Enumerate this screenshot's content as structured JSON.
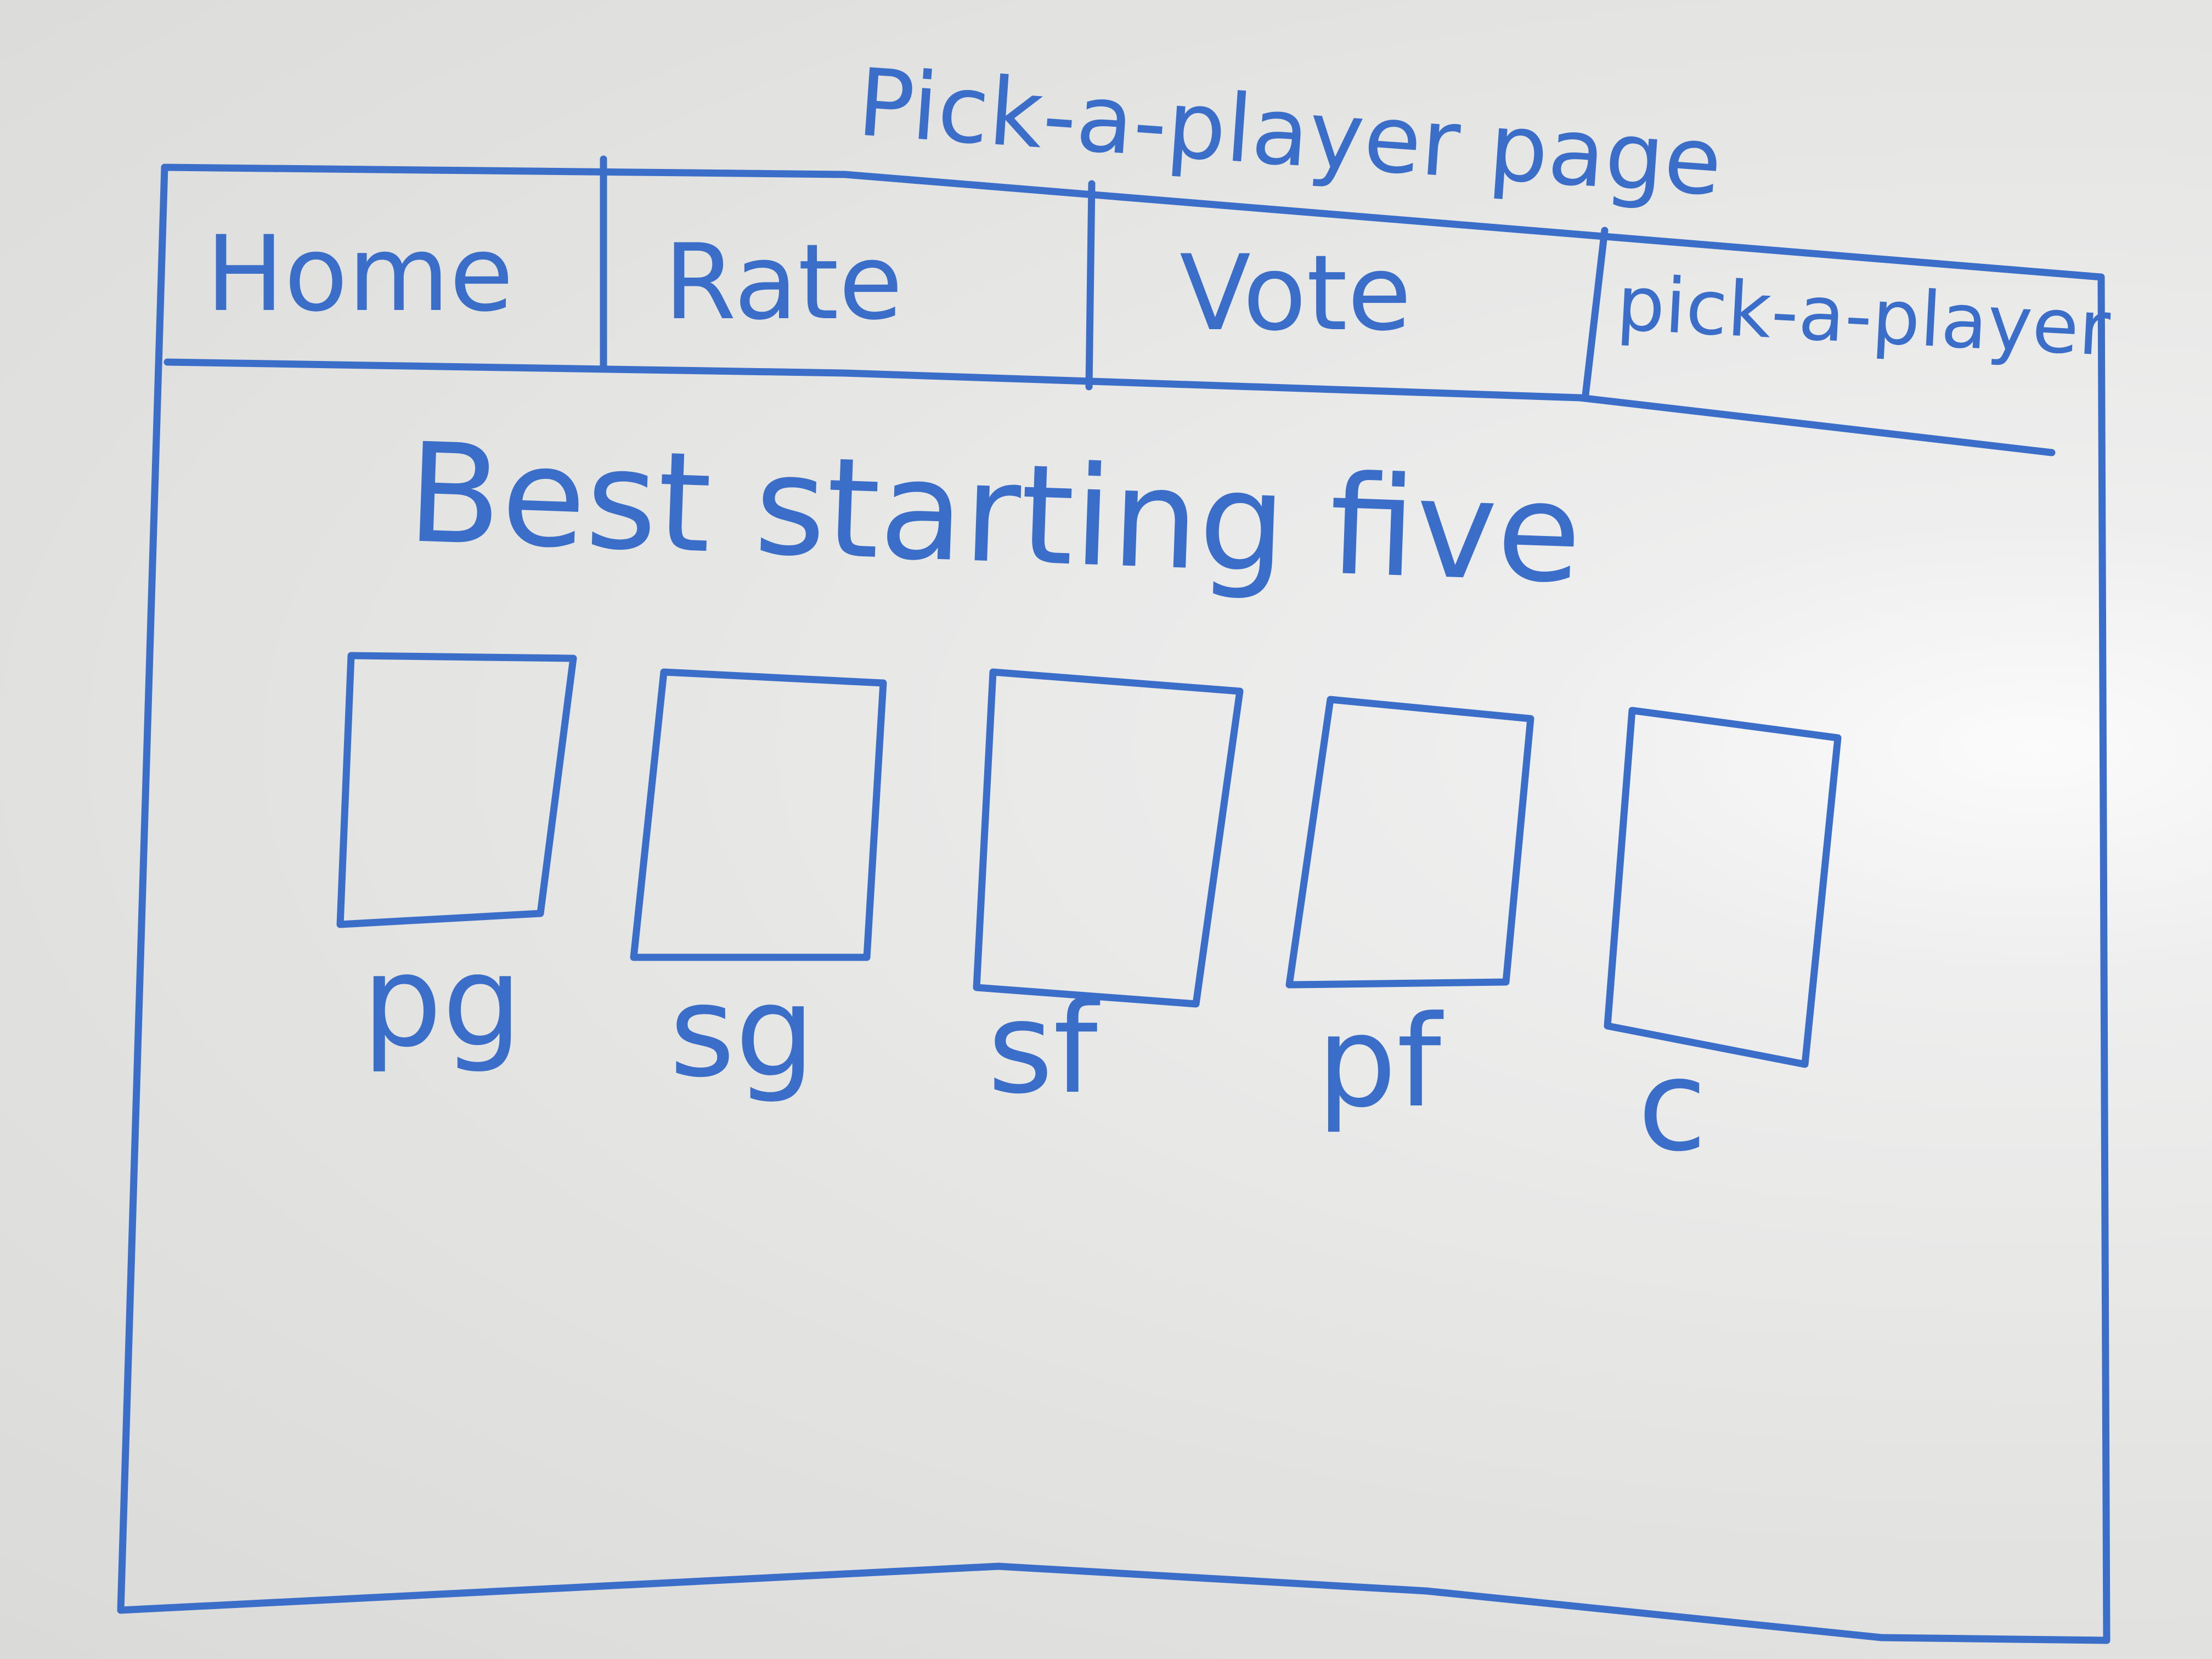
{
  "page_title": "Pick-a-player page",
  "nav": {
    "tabs": [
      {
        "label": "Home"
      },
      {
        "label": "Rate"
      },
      {
        "label": "Vote"
      },
      {
        "label": "pick-a-player"
      }
    ]
  },
  "main": {
    "heading": "Best starting five",
    "positions": [
      {
        "label": "pg"
      },
      {
        "label": "sg"
      },
      {
        "label": "sf"
      },
      {
        "label": "pf"
      },
      {
        "label": "c"
      }
    ]
  },
  "colors": {
    "ink": "#3b6ec9",
    "board": "#e6e6e4"
  }
}
